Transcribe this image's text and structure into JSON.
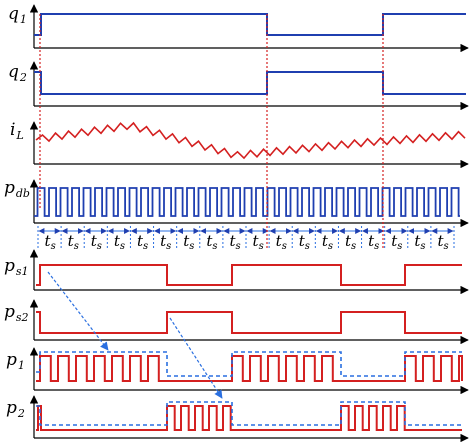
{
  "signals": [
    {
      "id": "q1",
      "base": "q",
      "sub": "1"
    },
    {
      "id": "q2",
      "base": "q",
      "sub": "2"
    },
    {
      "id": "iL",
      "base": "i",
      "sub": "L"
    },
    {
      "id": "pdb",
      "base": "p",
      "sub": "db"
    },
    {
      "id": "ps1",
      "base": "p",
      "sub": "s1"
    },
    {
      "id": "ps2",
      "base": "p",
      "sub": "s2"
    },
    {
      "id": "p1",
      "base": "p",
      "sub": "1"
    },
    {
      "id": "p2",
      "base": "p",
      "sub": "2"
    }
  ],
  "period_label": {
    "base": "t",
    "sub": "s",
    "count": 18
  },
  "colors": {
    "blue": "#1f3fb0",
    "red": "#d42020",
    "axis": "#000000",
    "dashed_blue": "#2a6fe0"
  }
}
